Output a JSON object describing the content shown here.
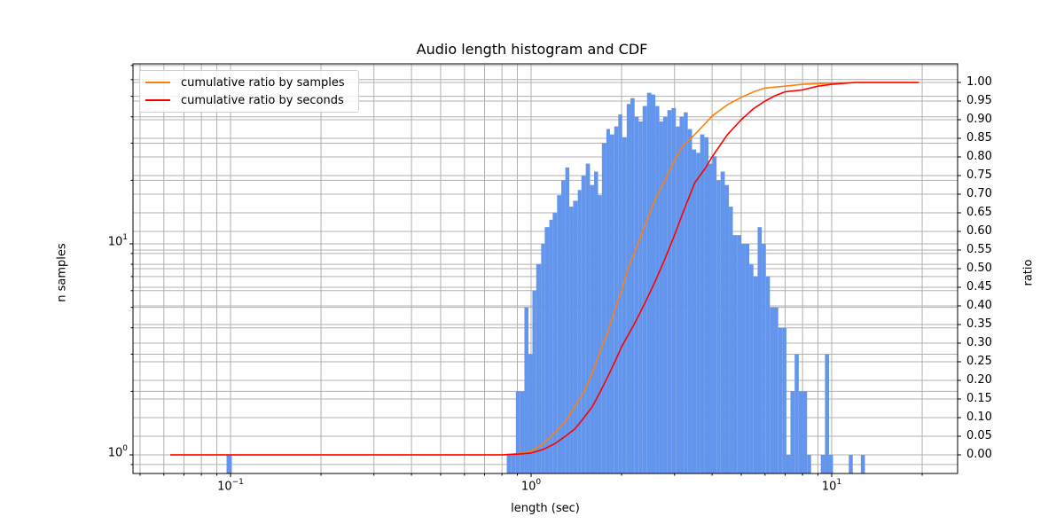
{
  "chart_data": {
    "type": "bar",
    "title": "Audio length histogram and CDF",
    "xlabel": "length (sec)",
    "ylabel": "n samples",
    "ylabel_right": "ratio",
    "xscale": "log",
    "yscale": "log",
    "xlim": [
      0.047,
      27
    ],
    "ylim": [
      0.85,
      65
    ],
    "ylim_right": [
      -0.05,
      1.05
    ],
    "grid": true,
    "legend_position": "upper left",
    "x_tick_labels": [
      "10^-1",
      "10^0",
      "10^1"
    ],
    "x_tick_values": [
      0.1,
      1,
      10
    ],
    "y_tick_labels": [
      "10^0",
      "10^1"
    ],
    "y_tick_values": [
      1,
      10
    ],
    "y_right_tick_labels": [
      "0.00",
      "0.05",
      "0.10",
      "0.15",
      "0.20",
      "0.25",
      "0.30",
      "0.35",
      "0.40",
      "0.45",
      "0.50",
      "0.55",
      "0.60",
      "0.65",
      "0.70",
      "0.75",
      "0.80",
      "0.85",
      "0.90",
      "0.95",
      "1.00"
    ],
    "histogram": {
      "name": "n samples",
      "color": "#6495ED",
      "bins": [
        {
          "x0": 0.097,
          "x1": 0.101,
          "count": 1
        },
        {
          "x0": 0.83,
          "x1": 0.86,
          "count": 1
        },
        {
          "x0": 0.86,
          "x1": 0.89,
          "count": 1
        },
        {
          "x0": 0.89,
          "x1": 0.92,
          "count": 2
        },
        {
          "x0": 0.92,
          "x1": 0.95,
          "count": 2
        },
        {
          "x0": 0.95,
          "x1": 0.98,
          "count": 5
        },
        {
          "x0": 0.98,
          "x1": 1.01,
          "count": 3
        },
        {
          "x0": 1.01,
          "x1": 1.04,
          "count": 6
        },
        {
          "x0": 1.04,
          "x1": 1.08,
          "count": 8
        },
        {
          "x0": 1.08,
          "x1": 1.11,
          "count": 10
        },
        {
          "x0": 1.11,
          "x1": 1.15,
          "count": 12
        },
        {
          "x0": 1.15,
          "x1": 1.18,
          "count": 13
        },
        {
          "x0": 1.18,
          "x1": 1.22,
          "count": 14
        },
        {
          "x0": 1.22,
          "x1": 1.26,
          "count": 17
        },
        {
          "x0": 1.26,
          "x1": 1.3,
          "count": 20
        },
        {
          "x0": 1.3,
          "x1": 1.34,
          "count": 23
        },
        {
          "x0": 1.34,
          "x1": 1.38,
          "count": 15
        },
        {
          "x0": 1.38,
          "x1": 1.43,
          "count": 16
        },
        {
          "x0": 1.43,
          "x1": 1.47,
          "count": 18
        },
        {
          "x0": 1.47,
          "x1": 1.52,
          "count": 21
        },
        {
          "x0": 1.52,
          "x1": 1.57,
          "count": 24
        },
        {
          "x0": 1.57,
          "x1": 1.62,
          "count": 19
        },
        {
          "x0": 1.62,
          "x1": 1.67,
          "count": 22
        },
        {
          "x0": 1.67,
          "x1": 1.72,
          "count": 17
        },
        {
          "x0": 1.72,
          "x1": 1.78,
          "count": 30
        },
        {
          "x0": 1.78,
          "x1": 1.83,
          "count": 35
        },
        {
          "x0": 1.83,
          "x1": 1.89,
          "count": 33
        },
        {
          "x0": 1.89,
          "x1": 1.95,
          "count": 36
        },
        {
          "x0": 1.95,
          "x1": 2.01,
          "count": 41
        },
        {
          "x0": 2.01,
          "x1": 2.08,
          "count": 32
        },
        {
          "x0": 2.08,
          "x1": 2.14,
          "count": 46
        },
        {
          "x0": 2.14,
          "x1": 2.21,
          "count": 49
        },
        {
          "x0": 2.21,
          "x1": 2.28,
          "count": 40
        },
        {
          "x0": 2.28,
          "x1": 2.35,
          "count": 38
        },
        {
          "x0": 2.35,
          "x1": 2.43,
          "count": 45
        },
        {
          "x0": 2.43,
          "x1": 2.51,
          "count": 52
        },
        {
          "x0": 2.51,
          "x1": 2.59,
          "count": 51
        },
        {
          "x0": 2.59,
          "x1": 2.67,
          "count": 45
        },
        {
          "x0": 2.67,
          "x1": 2.75,
          "count": 38
        },
        {
          "x0": 2.75,
          "x1": 2.84,
          "count": 40
        },
        {
          "x0": 2.84,
          "x1": 2.93,
          "count": 43
        },
        {
          "x0": 2.93,
          "x1": 3.03,
          "count": 44
        },
        {
          "x0": 3.03,
          "x1": 3.12,
          "count": 36
        },
        {
          "x0": 3.12,
          "x1": 3.22,
          "count": 40
        },
        {
          "x0": 3.22,
          "x1": 3.32,
          "count": 42
        },
        {
          "x0": 3.32,
          "x1": 3.43,
          "count": 35
        },
        {
          "x0": 3.43,
          "x1": 3.54,
          "count": 28
        },
        {
          "x0": 3.54,
          "x1": 3.65,
          "count": 27
        },
        {
          "x0": 3.65,
          "x1": 3.77,
          "count": 33
        },
        {
          "x0": 3.77,
          "x1": 3.89,
          "count": 32
        },
        {
          "x0": 3.89,
          "x1": 4.01,
          "count": 24
        },
        {
          "x0": 4.01,
          "x1": 4.14,
          "count": 26
        },
        {
          "x0": 4.14,
          "x1": 4.27,
          "count": 20
        },
        {
          "x0": 4.27,
          "x1": 4.41,
          "count": 22
        },
        {
          "x0": 4.41,
          "x1": 4.55,
          "count": 19
        },
        {
          "x0": 4.55,
          "x1": 4.69,
          "count": 15
        },
        {
          "x0": 4.69,
          "x1": 4.84,
          "count": 11
        },
        {
          "x0": 4.84,
          "x1": 5.0,
          "count": 11
        },
        {
          "x0": 5.0,
          "x1": 5.16,
          "count": 10
        },
        {
          "x0": 5.16,
          "x1": 5.32,
          "count": 10
        },
        {
          "x0": 5.32,
          "x1": 5.49,
          "count": 8
        },
        {
          "x0": 5.49,
          "x1": 5.67,
          "count": 7
        },
        {
          "x0": 5.67,
          "x1": 5.85,
          "count": 12
        },
        {
          "x0": 5.85,
          "x1": 6.04,
          "count": 10
        },
        {
          "x0": 6.04,
          "x1": 6.23,
          "count": 7
        },
        {
          "x0": 6.23,
          "x1": 6.43,
          "count": 5
        },
        {
          "x0": 6.43,
          "x1": 6.64,
          "count": 5
        },
        {
          "x0": 6.64,
          "x1": 6.85,
          "count": 4
        },
        {
          "x0": 6.85,
          "x1": 7.07,
          "count": 4
        },
        {
          "x0": 7.07,
          "x1": 7.29,
          "count": 1
        },
        {
          "x0": 7.29,
          "x1": 7.53,
          "count": 2
        },
        {
          "x0": 7.53,
          "x1": 7.77,
          "count": 3
        },
        {
          "x0": 7.77,
          "x1": 8.02,
          "count": 2
        },
        {
          "x0": 8.02,
          "x1": 8.28,
          "count": 2
        },
        {
          "x0": 8.28,
          "x1": 8.54,
          "count": 1
        },
        {
          "x0": 9.2,
          "x1": 9.5,
          "count": 1
        },
        {
          "x0": 9.5,
          "x1": 9.8,
          "count": 3
        },
        {
          "x0": 9.8,
          "x1": 10.1,
          "count": 1
        },
        {
          "x0": 11.4,
          "x1": 11.75,
          "count": 1
        },
        {
          "x0": 12.5,
          "x1": 12.9,
          "count": 1
        }
      ]
    },
    "series": [
      {
        "name": "cumulative ratio by samples",
        "color": "#FF7F0E",
        "axis": "right",
        "x": [
          0.063,
          0.8,
          0.9,
          1.0,
          1.05,
          1.1,
          1.15,
          1.2,
          1.3,
          1.4,
          1.5,
          1.6,
          1.7,
          1.8,
          1.9,
          2.0,
          2.1,
          2.2,
          2.4,
          2.6,
          2.8,
          3.0,
          3.2,
          3.5,
          3.8,
          4.0,
          4.5,
          5.0,
          5.5,
          6.0,
          7.0,
          8.0,
          9.0,
          10.0,
          12.0,
          19.5
        ],
        "y": [
          0.0,
          0.0,
          0.003,
          0.01,
          0.02,
          0.03,
          0.045,
          0.06,
          0.09,
          0.13,
          0.17,
          0.22,
          0.28,
          0.33,
          0.39,
          0.44,
          0.5,
          0.54,
          0.62,
          0.69,
          0.74,
          0.79,
          0.83,
          0.86,
          0.89,
          0.91,
          0.94,
          0.96,
          0.975,
          0.985,
          0.99,
          0.995,
          0.997,
          0.998,
          1.0,
          1.0
        ]
      },
      {
        "name": "cumulative ratio by seconds",
        "color": "#FF0000",
        "axis": "right",
        "x": [
          0.063,
          0.8,
          0.9,
          1.0,
          1.05,
          1.1,
          1.2,
          1.3,
          1.4,
          1.5,
          1.6,
          1.7,
          1.8,
          1.9,
          2.0,
          2.2,
          2.4,
          2.6,
          2.8,
          3.0,
          3.2,
          3.5,
          3.8,
          4.0,
          4.5,
          5.0,
          5.5,
          6.0,
          6.5,
          7.0,
          8.0,
          9.0,
          10.0,
          12.0,
          19.5
        ],
        "y": [
          0.0,
          0.0,
          0.002,
          0.005,
          0.01,
          0.015,
          0.03,
          0.05,
          0.07,
          0.1,
          0.13,
          0.17,
          0.21,
          0.25,
          0.29,
          0.35,
          0.41,
          0.47,
          0.53,
          0.59,
          0.65,
          0.73,
          0.77,
          0.8,
          0.86,
          0.9,
          0.93,
          0.95,
          0.965,
          0.975,
          0.98,
          0.99,
          0.995,
          1.0,
          1.0
        ]
      }
    ]
  },
  "legend": {
    "items": [
      {
        "label": "cumulative ratio by samples",
        "color": "#FF7F0E"
      },
      {
        "label": "cumulative ratio by seconds",
        "color": "#FF0000"
      }
    ]
  }
}
